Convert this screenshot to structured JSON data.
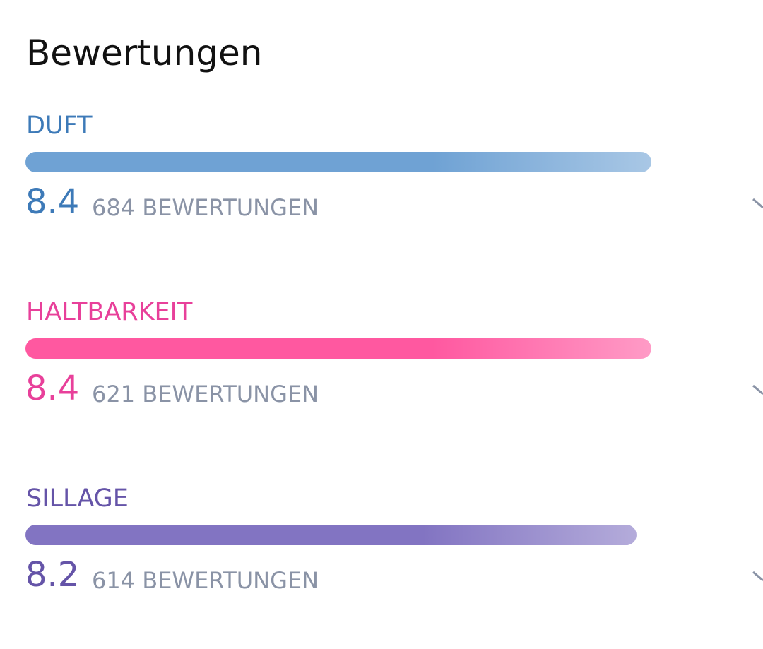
{
  "header": {
    "title": "Bewertungen"
  },
  "ratings": [
    {
      "label": "DUFT",
      "score": 8.4,
      "count_text": "684 BEWERTUNGEN",
      "color": "#3d7ab8",
      "bar_color": "#6fa2d4"
    },
    {
      "label": "HALTBARKEIT",
      "score": 8.4,
      "count_text": "621 BEWERTUNGEN",
      "color": "#e8409a",
      "bar_color": "#ff58a0"
    },
    {
      "label": "SILLAGE",
      "score": 8.2,
      "count_text": "614 BEWERTUNGEN",
      "color": "#6554a8",
      "bar_color": "#8274c2"
    }
  ]
}
